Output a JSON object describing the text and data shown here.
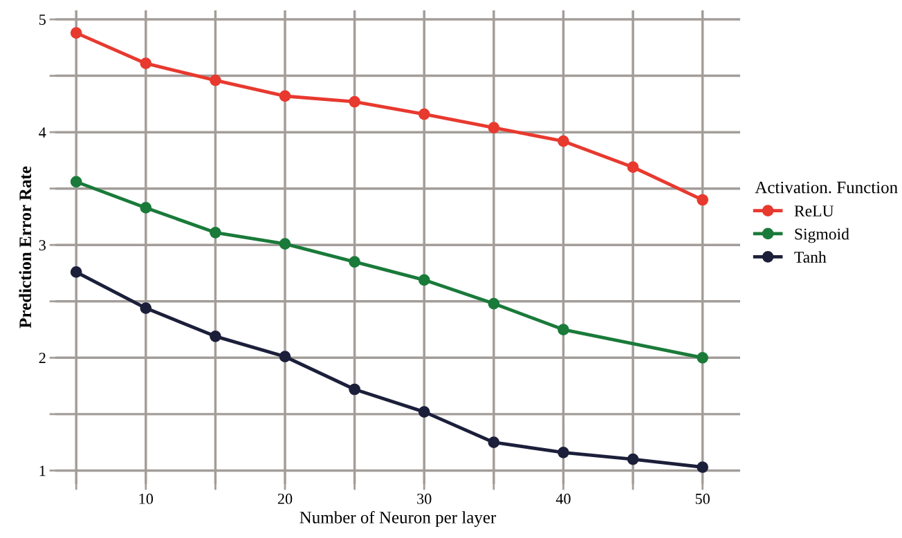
{
  "chart_data": {
    "type": "line",
    "xlabel": "Number of Neuron per layer",
    "ylabel": "Prediction Error Rate",
    "legend_title": "Activation. Function",
    "legend": "right",
    "grid": true,
    "marker": "circle",
    "line_style": "solid",
    "x": [
      5,
      10,
      15,
      20,
      25,
      30,
      35,
      40,
      45,
      50
    ],
    "xlim": [
      3.5,
      52.7
    ],
    "ylim": [
      0.88,
      5.08
    ],
    "xticks": [
      {
        "value": 5,
        "label": null
      },
      10,
      {
        "value": 15,
        "label": null
      },
      20,
      {
        "value": 25,
        "label": null
      },
      30,
      {
        "value": 35,
        "label": null
      },
      40,
      {
        "value": 45,
        "label": null
      },
      50
    ],
    "yticks": [
      1,
      {
        "value": 1.5,
        "label": null
      },
      2,
      {
        "value": 2.5,
        "label": null
      },
      3,
      {
        "value": 3.5,
        "label": null
      },
      4,
      {
        "value": 4.5,
        "label": null
      },
      5
    ],
    "series": [
      {
        "name": "ReLU",
        "color": "#e8392f",
        "values": [
          4.88,
          4.61,
          4.46,
          4.32,
          4.27,
          4.16,
          4.04,
          3.92,
          3.69,
          3.4
        ]
      },
      {
        "name": "Sigmoid",
        "color": "#1a7a3a",
        "x": [
          5,
          10,
          15,
          20,
          25,
          30,
          35,
          40,
          50
        ],
        "values": [
          3.56,
          3.33,
          3.11,
          3.01,
          2.85,
          2.69,
          2.48,
          2.25,
          2.0
        ]
      },
      {
        "name": "Tanh",
        "color": "#1c1f3a",
        "values": [
          2.76,
          2.44,
          2.19,
          2.01,
          1.72,
          1.52,
          1.25,
          1.16,
          1.1,
          1.03
        ]
      }
    ]
  }
}
